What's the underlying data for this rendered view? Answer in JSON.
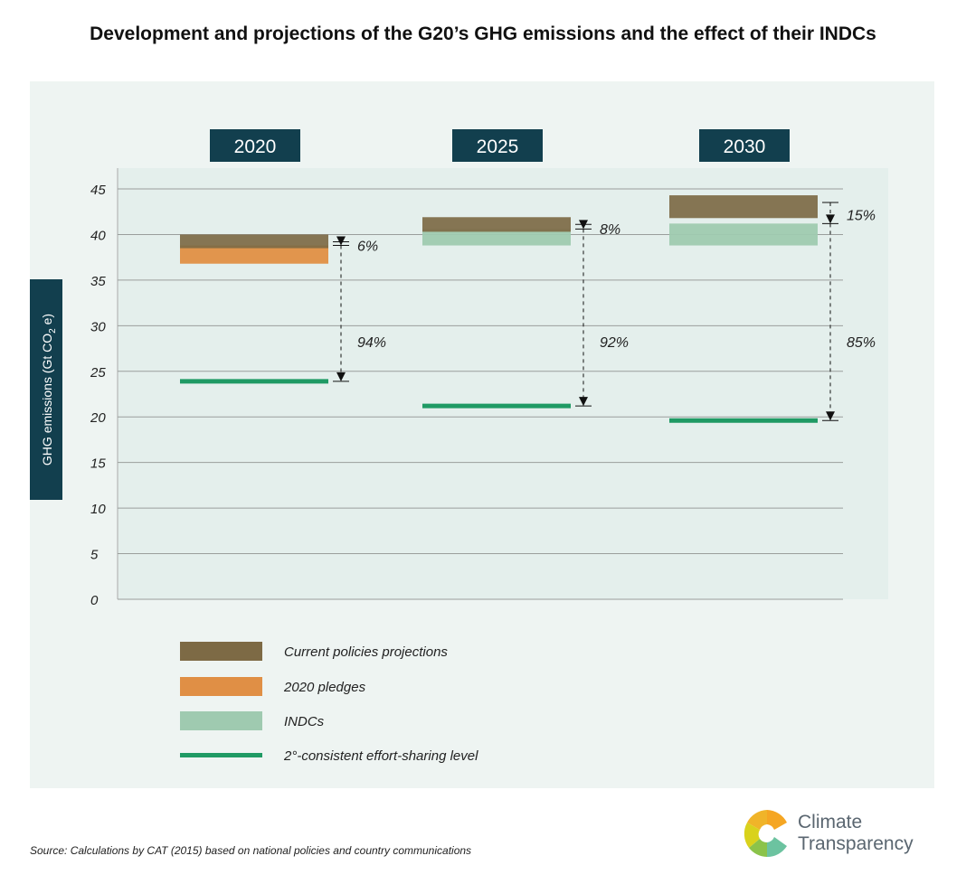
{
  "chart_data": {
    "type": "bar",
    "title": "Development and projections of the G20’s GHG emissions and the effect of their INDCs",
    "ylabel": "GHG emissions (Gt CO2 e)",
    "ylim": [
      0,
      45
    ],
    "yticks": [
      "0",
      "5",
      "10",
      "15",
      "20",
      "25",
      "30",
      "35",
      "40",
      "45"
    ],
    "grid": true,
    "categories": [
      "2020",
      "2025",
      "2030"
    ],
    "series": [
      {
        "name": "Current policies projections",
        "color": "#7d6a45",
        "ranges": [
          [
            38.5,
            40.0
          ],
          [
            40.3,
            41.9
          ],
          [
            41.8,
            44.3
          ]
        ]
      },
      {
        "name": "2020 pledges",
        "color": "#e08f45",
        "ranges": [
          [
            36.8,
            38.8
          ],
          null,
          null
        ]
      },
      {
        "name": "INDCs",
        "color": "#9fcab0",
        "ranges": [
          null,
          [
            38.8,
            40.6
          ],
          [
            38.8,
            41.2
          ]
        ]
      },
      {
        "name": "2°-consistent effort-sharing level",
        "color": "#1f9a64",
        "values": [
          23.9,
          21.2,
          19.6
        ]
      }
    ],
    "gap_annotations": [
      {
        "upper": [
          "6%",
          "8%",
          "15%"
        ],
        "lower": [
          "94%",
          "92%",
          "85%"
        ]
      }
    ],
    "legend_position": "bottom-left"
  },
  "ylabel_main": "GHG emissions (Gt CO",
  "ylabel_sub": "2",
  "ylabel_end": " e)",
  "source": "Source: Calculations by CAT (2015) based on national policies and country communications",
  "logo": {
    "line1": "Climate",
    "line2": "Transparency"
  }
}
